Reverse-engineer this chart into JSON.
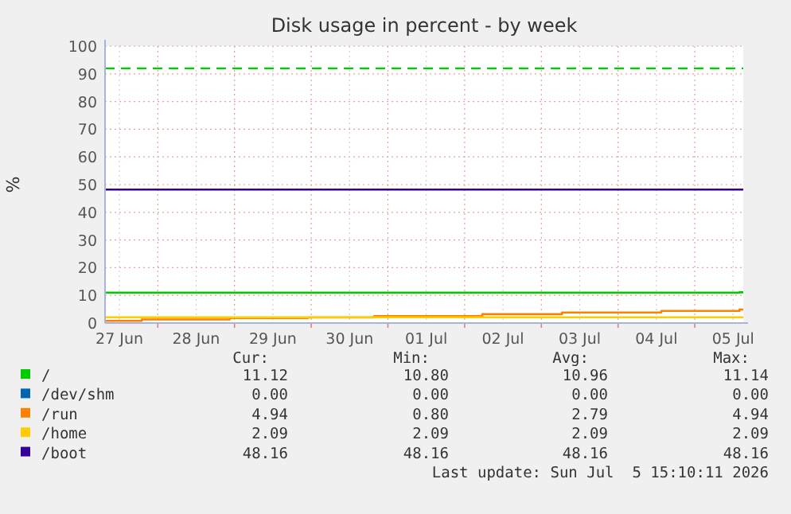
{
  "chart_data": {
    "type": "step",
    "title": "Disk usage in percent - by week",
    "ylabel": "%",
    "xlim": [
      "2026-06-27T07:30",
      "2026-07-05T15:10"
    ],
    "ylim": [
      0,
      100
    ],
    "xticks": [
      {
        "value": "2026-06-27T12:00",
        "label": "27 Jun"
      },
      {
        "value": "2026-06-28T00:00",
        "label": null
      },
      {
        "value": "2026-06-28T12:00",
        "label": "28 Jun"
      },
      {
        "value": "2026-06-29T00:00",
        "label": null
      },
      {
        "value": "2026-06-29T12:00",
        "label": "29 Jun"
      },
      {
        "value": "2026-06-30T00:00",
        "label": null
      },
      {
        "value": "2026-06-30T12:00",
        "label": "30 Jun"
      },
      {
        "value": "2026-07-01T00:00",
        "label": null
      },
      {
        "value": "2026-07-01T12:00",
        "label": "01 Jul"
      },
      {
        "value": "2026-07-02T00:00",
        "label": null
      },
      {
        "value": "2026-07-02T12:00",
        "label": "02 Jul"
      },
      {
        "value": "2026-07-03T00:00",
        "label": null
      },
      {
        "value": "2026-07-03T12:00",
        "label": "03 Jul"
      },
      {
        "value": "2026-07-04T00:00",
        "label": null
      },
      {
        "value": "2026-07-04T12:00",
        "label": "04 Jul"
      },
      {
        "value": "2026-07-05T00:00",
        "label": null
      },
      {
        "value": "2026-07-05T12:00",
        "label": "05 Jul"
      }
    ],
    "yticks": [
      0,
      10,
      20,
      30,
      40,
      50,
      60,
      70,
      80,
      90,
      100
    ],
    "grid": true,
    "legend": "bottom left",
    "series": [
      {
        "name": "/",
        "color": "#00cc00",
        "x": [
          "2026-06-27T07:30",
          "2026-07-05T14:00",
          "2026-07-05T15:10"
        ],
        "values": [
          11,
          11.1,
          11.1
        ]
      },
      {
        "name": "/dev/shm",
        "color": "#0066b3"
      },
      {
        "name": "/run",
        "color": "#ff8000",
        "x": [
          "2026-06-27T07:30",
          "2026-06-27T19:00",
          "2026-06-28T22:30",
          "2026-06-29T23:00",
          "2026-06-30T19:40",
          "2026-07-02T05:30",
          "2026-07-03T06:30",
          "2026-07-04T13:30",
          "2026-07-05T14:00",
          "2026-07-05T15:10"
        ],
        "values": [
          0.8,
          1.3,
          1.8,
          2.0,
          2.5,
          3.2,
          3.8,
          4.4,
          4.9,
          4.9
        ]
      },
      {
        "name": "/home",
        "color": "#ffcc00",
        "x": [
          "2026-06-27T07:30",
          "2026-07-05T15:10"
        ],
        "values": [
          2.1,
          2.1
        ]
      },
      {
        "name": "/boot",
        "color": "#330099",
        "x": [
          "2026-06-27T07:30",
          "2026-07-05T15:10"
        ],
        "values": [
          48.2,
          48.2
        ]
      }
    ],
    "ref_lines": [
      {
        "axis": "y",
        "value": 92,
        "color": "#00cc00",
        "line_style": "dashed"
      }
    ],
    "annotations": [
      "Cur:",
      "Min:",
      "Avg:",
      "Max:",
      "11.12",
      "10.80",
      "10.96",
      "11.14",
      "0.00",
      "0.00",
      "0.00",
      "0.00",
      "4.94",
      "0.80",
      "2.79",
      "4.94",
      "2.09",
      "2.09",
      "2.09",
      "2.09",
      "48.16",
      "48.16",
      "48.16",
      "48.16",
      "Last update: Sun Jul  5 15:10:11 2026"
    ]
  }
}
